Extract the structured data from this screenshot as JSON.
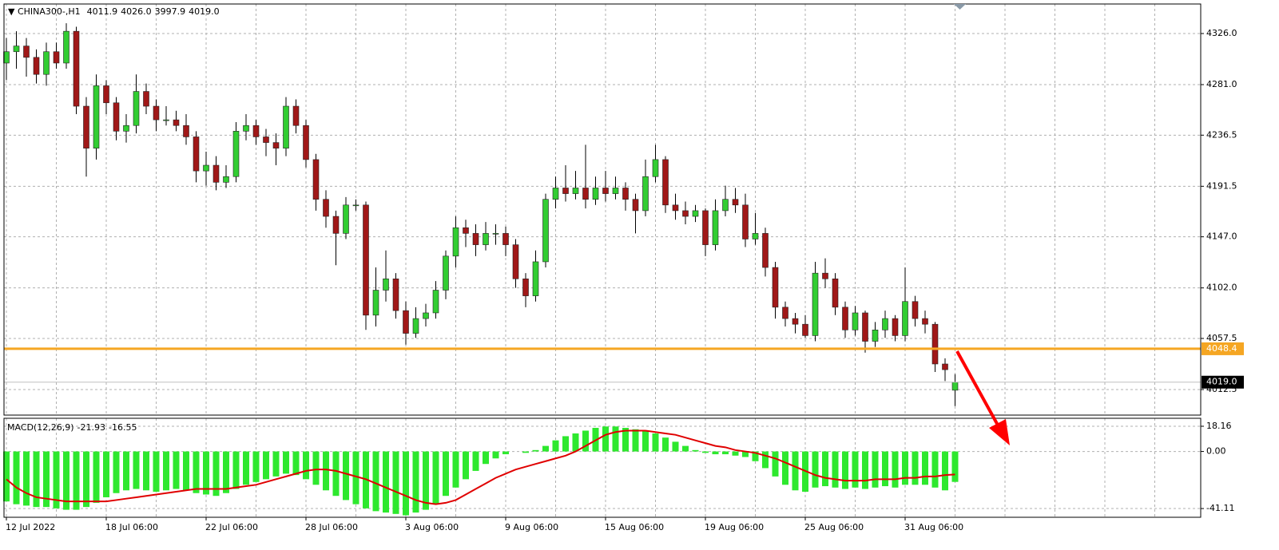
{
  "chart_data": [
    {
      "type": "candlestick",
      "title": "CHINA300-,H1",
      "ohlc_labels": [
        "4011.9",
        "4026.0",
        "3997.9",
        "4019.0"
      ],
      "up_color": "#32cd32",
      "down_color": "#a01818",
      "wick_color": "#000000",
      "open": [
        4300,
        4310,
        4315,
        4305,
        4290,
        4310,
        4300,
        4328,
        4262,
        4225,
        4280,
        4265,
        4240,
        4245,
        4275,
        4262,
        4250,
        4250,
        4245,
        4235,
        4205,
        4210,
        4195,
        4200,
        4240,
        4245,
        4235,
        4230,
        4225,
        4262,
        4245,
        4215,
        4180,
        4165,
        4150,
        4175,
        4175,
        4078,
        4100,
        4110,
        4082,
        4062,
        4075,
        4080,
        4100,
        4130,
        4155,
        4150,
        4140,
        4150,
        4150,
        4140,
        4110,
        4095,
        4125,
        4180,
        4190,
        4185,
        4190,
        4180,
        4190,
        4185,
        4190,
        4180,
        4170,
        4200,
        4215,
        4175,
        4170,
        4165,
        4170,
        4140,
        4170,
        4180,
        4175,
        4145,
        4150,
        4120,
        4085,
        4075,
        4070,
        4060,
        4115,
        4110,
        4085,
        4065,
        4080,
        4055,
        4065,
        4075,
        4060,
        4090,
        4075,
        4070,
        4035,
        4011.9
      ],
      "high": [
        4322,
        4328,
        4322,
        4312,
        4318,
        4318,
        4335,
        4332,
        4270,
        4290,
        4285,
        4270,
        4255,
        4290,
        4282,
        4268,
        4262,
        4258,
        4255,
        4240,
        4222,
        4218,
        4210,
        4248,
        4255,
        4250,
        4242,
        4238,
        4270,
        4268,
        4250,
        4220,
        4188,
        4170,
        4182,
        4180,
        4178,
        4120,
        4135,
        4115,
        4090,
        4085,
        4088,
        4108,
        4135,
        4165,
        4162,
        4158,
        4160,
        4158,
        4156,
        4145,
        4115,
        4135,
        4185,
        4200,
        4210,
        4205,
        4228,
        4200,
        4205,
        4200,
        4195,
        4185,
        4215,
        4228,
        4218,
        4185,
        4178,
        4175,
        4172,
        4180,
        4192,
        4190,
        4185,
        4168,
        4155,
        4125,
        4090,
        4080,
        4078,
        4125,
        4128,
        4115,
        4090,
        4086,
        4082,
        4072,
        4082,
        4078,
        4120,
        4095,
        4082,
        4072,
        4040,
        4026
      ],
      "low": [
        4285,
        4295,
        4288,
        4282,
        4280,
        4295,
        4295,
        4255,
        4200,
        4215,
        4255,
        4232,
        4230,
        4238,
        4255,
        4240,
        4245,
        4240,
        4228,
        4195,
        4192,
        4188,
        4190,
        4195,
        4232,
        4228,
        4218,
        4210,
        4218,
        4238,
        4208,
        4170,
        4155,
        4122,
        4145,
        4170,
        4065,
        4068,
        4090,
        4075,
        4052,
        4058,
        4068,
        4075,
        4092,
        4120,
        4138,
        4130,
        4135,
        4140,
        4130,
        4102,
        4085,
        4090,
        4120,
        4172,
        4178,
        4180,
        4172,
        4175,
        4178,
        4180,
        4170,
        4150,
        4165,
        4195,
        4168,
        4162,
        4158,
        4160,
        4130,
        4135,
        4165,
        4168,
        4138,
        4140,
        4112,
        4075,
        4068,
        4062,
        4058,
        4055,
        4102,
        4078,
        4058,
        4060,
        4045,
        4050,
        4058,
        4055,
        4055,
        4068,
        4062,
        4028,
        4020,
        3997.9
      ],
      "close": [
        4310,
        4315,
        4305,
        4290,
        4310,
        4300,
        4328,
        4262,
        4225,
        4280,
        4265,
        4240,
        4245,
        4275,
        4262,
        4250,
        4250,
        4245,
        4235,
        4205,
        4210,
        4195,
        4200,
        4240,
        4245,
        4235,
        4230,
        4225,
        4262,
        4245,
        4215,
        4180,
        4165,
        4150,
        4175,
        4175,
        4078,
        4100,
        4110,
        4082,
        4062,
        4075,
        4080,
        4100,
        4130,
        4155,
        4150,
        4140,
        4150,
        4150,
        4140,
        4110,
        4095,
        4125,
        4180,
        4190,
        4185,
        4190,
        4180,
        4190,
        4185,
        4190,
        4180,
        4170,
        4200,
        4215,
        4175,
        4170,
        4165,
        4170,
        4140,
        4170,
        4180,
        4175,
        4145,
        4150,
        4120,
        4085,
        4075,
        4070,
        4060,
        4115,
        4110,
        4085,
        4065,
        4080,
        4055,
        4065,
        4075,
        4060,
        4090,
        4075,
        4070,
        4035,
        4030,
        4019.0
      ],
      "ylim": [
        3990,
        4352
      ],
      "yticks": [
        {
          "value": 4326,
          "label": "4326.0"
        },
        {
          "value": 4281,
          "label": "4281.0"
        },
        {
          "value": 4236.5,
          "label": "4236.5"
        },
        {
          "value": 4191.5,
          "label": "4191.5"
        },
        {
          "value": 4147,
          "label": "4147.0"
        },
        {
          "value": 4102,
          "label": "4102.0"
        },
        {
          "value": 4057.5,
          "label": "4057.5"
        },
        {
          "value": 4012.5,
          "label": "4012.5"
        }
      ],
      "xticks": [
        {
          "value": 0,
          "label": "12 Jul 2022"
        },
        {
          "value": 10,
          "label": "18 Jul 06:00"
        },
        {
          "value": 20,
          "label": "22 Jul 06:00"
        },
        {
          "value": 30,
          "label": "28 Jul 06:00"
        },
        {
          "value": 40,
          "label": "3 Aug 06:00"
        },
        {
          "value": 50,
          "label": "9 Aug 06:00"
        },
        {
          "value": 60,
          "label": "15 Aug 06:00"
        },
        {
          "value": 70,
          "label": "19 Aug 06:00"
        },
        {
          "value": 80,
          "label": "25 Aug 06:00"
        },
        {
          "value": 90,
          "label": "31 Aug 06:00"
        }
      ],
      "level": {
        "value": 4048.4,
        "label": "4048.4",
        "color": "#f5a623"
      },
      "last_price": {
        "value": 4019.0,
        "label": "4019.0",
        "color": "#000000"
      },
      "grid": true
    },
    {
      "type": "macd",
      "title": "MACD(12,26,9)",
      "header_values": [
        "-21.93",
        "-16.55"
      ],
      "series": [
        {
          "color": "#2ee82e",
          "values": [
            -36,
            -38,
            -39,
            -40,
            -40,
            -41,
            -42,
            -42,
            -40,
            -37,
            -33,
            -30,
            -28,
            -27,
            -28,
            -29,
            -28,
            -27,
            -28,
            -30,
            -31,
            -32,
            -30,
            -27,
            -24,
            -22,
            -20,
            -18,
            -16,
            -17,
            -20,
            -24,
            -28,
            -32,
            -35,
            -38,
            -41,
            -43,
            -44,
            -45,
            -46,
            -44,
            -42,
            -38,
            -32,
            -26,
            -20,
            -14,
            -9,
            -5,
            -2,
            0,
            -1,
            1,
            4,
            8,
            11,
            13,
            15,
            17,
            18,
            18,
            17,
            16,
            15,
            13,
            10,
            7,
            4,
            1,
            -1,
            -2,
            -2,
            -3,
            -4,
            -7,
            -12,
            -18,
            -24,
            -28,
            -29,
            -26,
            -25,
            -26,
            -27,
            -26,
            -27,
            -26,
            -25,
            -26,
            -24,
            -24,
            -24,
            -26,
            -28,
            -21.93
          ]
        },
        {
          "color": "#e00000",
          "values": [
            -20,
            -26,
            -30,
            -33,
            -34,
            -35,
            -36,
            -36,
            -36,
            -36,
            -36,
            -35,
            -34,
            -33,
            -32,
            -31,
            -30,
            -29,
            -28,
            -27,
            -27,
            -27,
            -27,
            -26,
            -25,
            -24,
            -22,
            -20,
            -18,
            -16,
            -14,
            -13,
            -13,
            -14,
            -16,
            -18,
            -20,
            -23,
            -26,
            -29,
            -32,
            -35,
            -37,
            -38,
            -37,
            -35,
            -31,
            -27,
            -23,
            -19,
            -16,
            -13,
            -11,
            -9,
            -7,
            -5,
            -3,
            0,
            4,
            8,
            12,
            14,
            15,
            15,
            15,
            14,
            13,
            12,
            10,
            8,
            6,
            4,
            3,
            1,
            0,
            -1,
            -3,
            -5,
            -8,
            -11,
            -14,
            -17,
            -19,
            -20,
            -21,
            -21,
            -21,
            -20,
            -20,
            -20,
            -19,
            -19,
            -18,
            -18,
            -17,
            -16.55
          ]
        }
      ],
      "ylim": [
        -47.4,
        23.9
      ],
      "yticks": [
        18.16,
        {
          "value": 0,
          "label": "0.00"
        },
        -41.11
      ],
      "grid": true
    }
  ]
}
